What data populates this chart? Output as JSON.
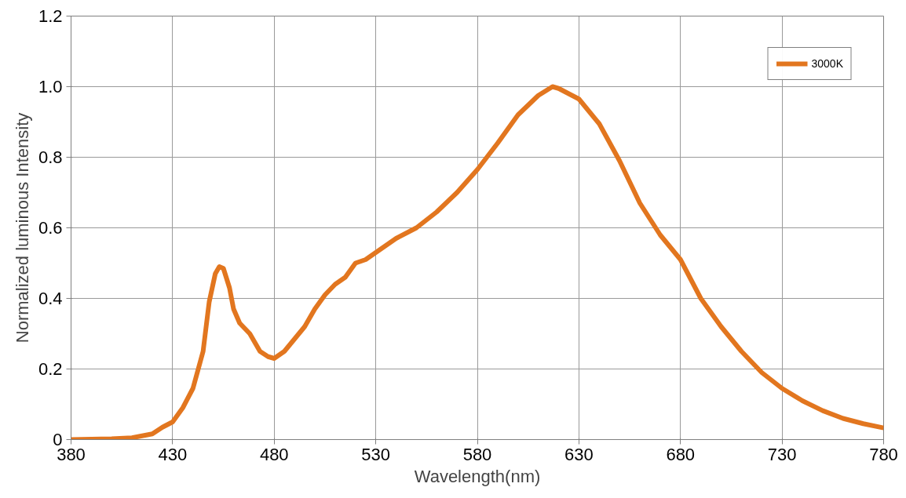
{
  "chart_data": {
    "type": "line",
    "xlabel": "Wavelength(nm)",
    "ylabel": "Normalized luminous Intensity",
    "xlim": [
      380,
      780
    ],
    "xticks": [
      380,
      430,
      480,
      530,
      580,
      630,
      680,
      730,
      780
    ],
    "ylim": [
      0,
      1.2
    ],
    "yticks": [
      0,
      {
        "value": 0.2,
        "label": "0.2"
      },
      {
        "value": 0.4,
        "label": "0.4"
      },
      {
        "value": 0.6,
        "label": "0.6"
      },
      {
        "value": 0.8,
        "label": "0.8"
      },
      {
        "value": 1.0,
        "label": "1.0"
      },
      {
        "value": 1.2,
        "label": "1.2"
      }
    ],
    "grid": true,
    "legend": "top right",
    "marker": "none",
    "line_style": "solid",
    "series": [
      {
        "name": "3000K",
        "color": "#e2761f",
        "x": [
          380,
          400,
          410,
          420,
          425,
          430,
          435,
          440,
          445,
          448,
          451,
          453,
          455,
          458,
          460,
          463,
          468,
          473,
          477,
          480,
          485,
          490,
          495,
          500,
          505,
          510,
          515,
          520,
          525,
          530,
          540,
          550,
          560,
          570,
          580,
          590,
          600,
          610,
          617,
          620,
          630,
          640,
          650,
          660,
          670,
          680,
          690,
          700,
          710,
          720,
          730,
          740,
          750,
          760,
          770,
          780
        ],
        "values": [
          0,
          0.002,
          0.005,
          0.016,
          0.035,
          0.05,
          0.09,
          0.145,
          0.25,
          0.39,
          0.47,
          0.49,
          0.485,
          0.43,
          0.37,
          0.33,
          0.3,
          0.25,
          0.235,
          0.23,
          0.25,
          0.285,
          0.32,
          0.37,
          0.41,
          0.44,
          0.46,
          0.5,
          0.51,
          0.53,
          0.57,
          0.6,
          0.645,
          0.7,
          0.765,
          0.84,
          0.92,
          0.975,
          1.0,
          0.995,
          0.965,
          0.895,
          0.79,
          0.67,
          0.58,
          0.51,
          0.4,
          0.32,
          0.25,
          0.19,
          0.145,
          0.11,
          0.082,
          0.06,
          0.045,
          0.033
        ]
      }
    ]
  }
}
